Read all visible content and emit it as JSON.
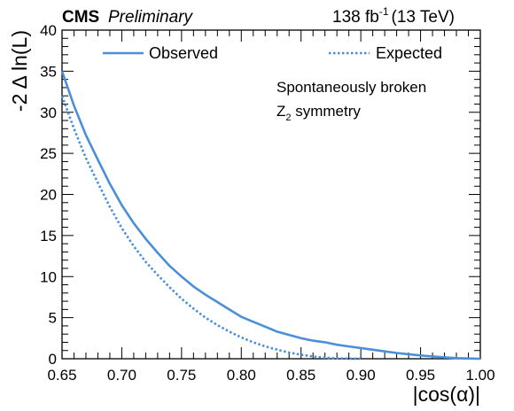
{
  "header": {
    "experiment": "CMS",
    "status": "Preliminary",
    "lumi_value": "138 fb",
    "lumi_exp": "-1",
    "energy": "(13 TeV)"
  },
  "annotation": {
    "line1": "Spontaneously broken",
    "line2_prefix": "Z",
    "line2_sub": "2",
    "line2_suffix": " symmetry"
  },
  "chart_data": {
    "type": "line",
    "xlabel": "|cos(α)|",
    "ylabel": "-2 Δ ln(L)",
    "xlim": [
      0.65,
      1.0
    ],
    "ylim": [
      0,
      40
    ],
    "xticks": [
      "0.65",
      "0.70",
      "0.75",
      "0.80",
      "0.85",
      "0.90",
      "0.95",
      "1.00"
    ],
    "yticks": [
      "0",
      "5",
      "10",
      "15",
      "20",
      "25",
      "30",
      "35",
      "40"
    ],
    "legend_position": "top",
    "series": [
      {
        "name": "Observed",
        "style": "solid",
        "color": "#4a90d9",
        "x": [
          0.65,
          0.66,
          0.67,
          0.68,
          0.69,
          0.7,
          0.71,
          0.72,
          0.73,
          0.74,
          0.75,
          0.76,
          0.77,
          0.78,
          0.79,
          0.8,
          0.81,
          0.82,
          0.83,
          0.84,
          0.85,
          0.86,
          0.87,
          0.88,
          0.89,
          0.9,
          0.91,
          0.92,
          0.93,
          0.94,
          0.95,
          0.96,
          0.97,
          0.98,
          0.99,
          1.0
        ],
        "y": [
          35.0,
          30.8,
          27.2,
          24.2,
          21.3,
          18.7,
          16.5,
          14.6,
          12.9,
          11.3,
          10.0,
          8.8,
          7.8,
          6.9,
          6.0,
          5.1,
          4.5,
          3.9,
          3.3,
          2.9,
          2.5,
          2.2,
          2.0,
          1.7,
          1.5,
          1.3,
          1.1,
          0.9,
          0.7,
          0.55,
          0.4,
          0.28,
          0.17,
          0.08,
          0.03,
          0.0
        ]
      },
      {
        "name": "Expected",
        "style": "dotted",
        "color": "#4a90d9",
        "x": [
          0.65,
          0.66,
          0.67,
          0.68,
          0.69,
          0.7,
          0.71,
          0.72,
          0.73,
          0.74,
          0.75,
          0.76,
          0.77,
          0.78,
          0.79,
          0.8,
          0.81,
          0.82,
          0.83,
          0.84,
          0.85,
          0.86,
          0.87,
          0.88,
          0.89,
          0.9
        ],
        "y": [
          32.0,
          28.0,
          24.4,
          21.4,
          18.5,
          15.9,
          13.7,
          11.8,
          10.2,
          8.7,
          7.3,
          6.1,
          5.0,
          4.1,
          3.3,
          2.6,
          2.0,
          1.5,
          1.1,
          0.75,
          0.48,
          0.28,
          0.13,
          0.05,
          0.01,
          0.0
        ]
      }
    ]
  }
}
